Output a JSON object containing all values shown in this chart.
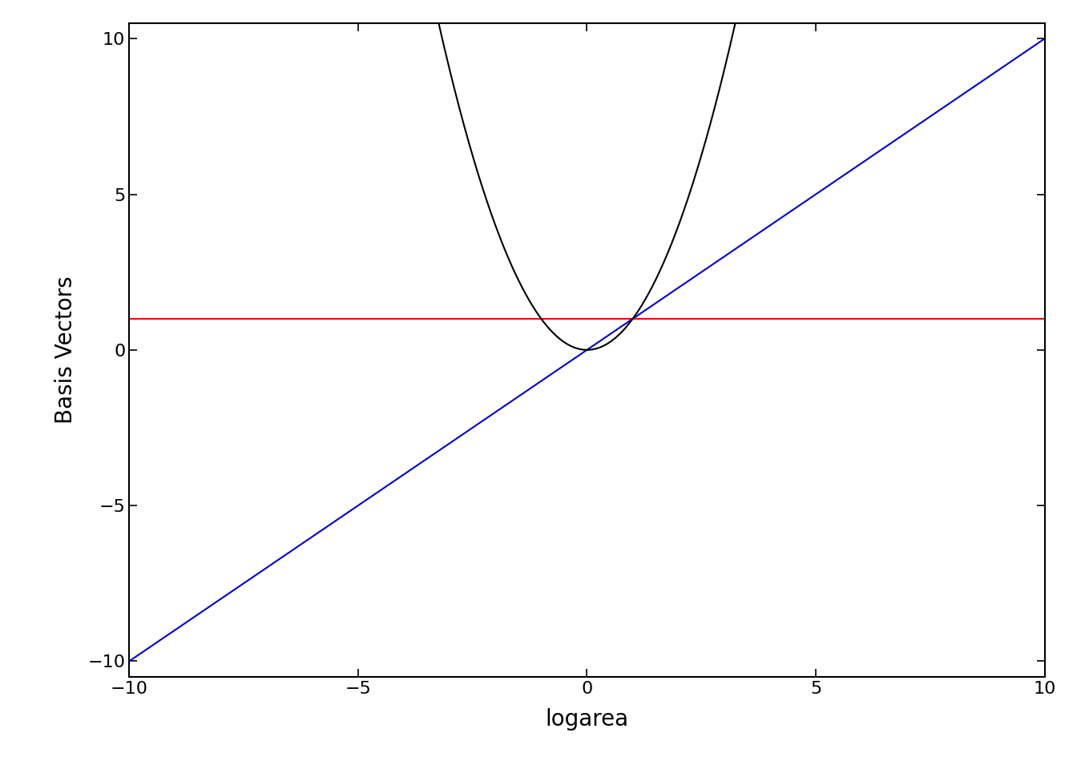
{
  "xlim": [
    -10,
    10
  ],
  "ylim": [
    -10.5,
    10.5
  ],
  "xlabel": "logarea",
  "ylabel": "Basis Vectors",
  "xticks": [
    -10,
    -5,
    0,
    5,
    10
  ],
  "yticks": [
    -10,
    -5,
    0,
    5,
    10
  ],
  "line_intercept": {
    "y": 1,
    "color": "#FF0000",
    "linewidth": 1.5
  },
  "line_linear": {
    "color": "#0000CC",
    "linewidth": 1.5
  },
  "line_quadratic": {
    "color": "#000000",
    "linewidth": 1.5
  },
  "background_color": "#FFFFFF",
  "xlabel_fontsize": 20,
  "ylabel_fontsize": 20,
  "tick_fontsize": 16,
  "spine_linewidth": 1.5
}
